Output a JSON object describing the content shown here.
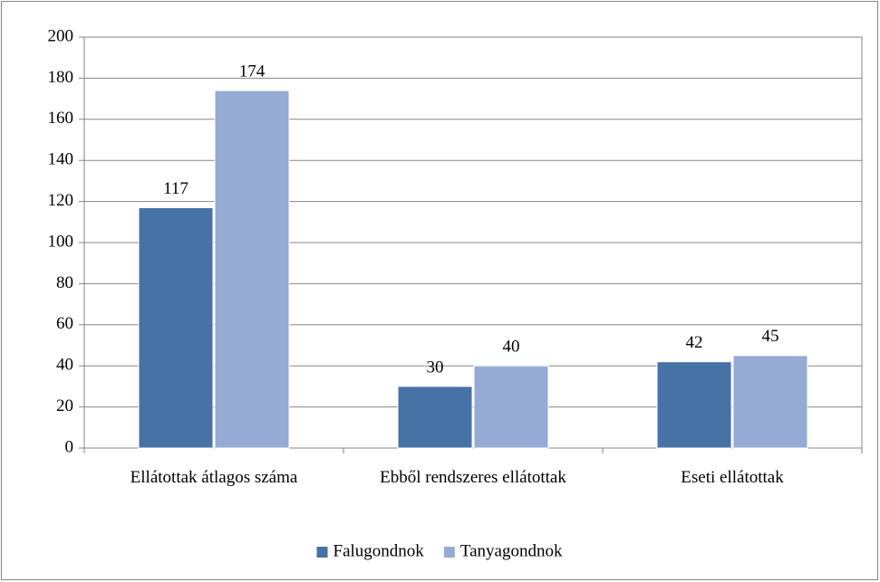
{
  "chart_data": {
    "type": "bar",
    "categories": [
      "Ellátottak átlagos száma",
      "Ebből rendszeres ellátottak",
      "Eseti ellátottak"
    ],
    "series": [
      {
        "name": "Falugondnok",
        "color": "#4672a6",
        "values": [
          117,
          30,
          42
        ]
      },
      {
        "name": "Tanyagondnok",
        "color": "#95abd4",
        "values": [
          174,
          40,
          45
        ]
      }
    ],
    "ylim": [
      0,
      200
    ],
    "yticks": [
      0,
      20,
      40,
      60,
      80,
      100,
      120,
      140,
      160,
      180,
      200
    ],
    "grid": true,
    "legend": "bottom"
  }
}
